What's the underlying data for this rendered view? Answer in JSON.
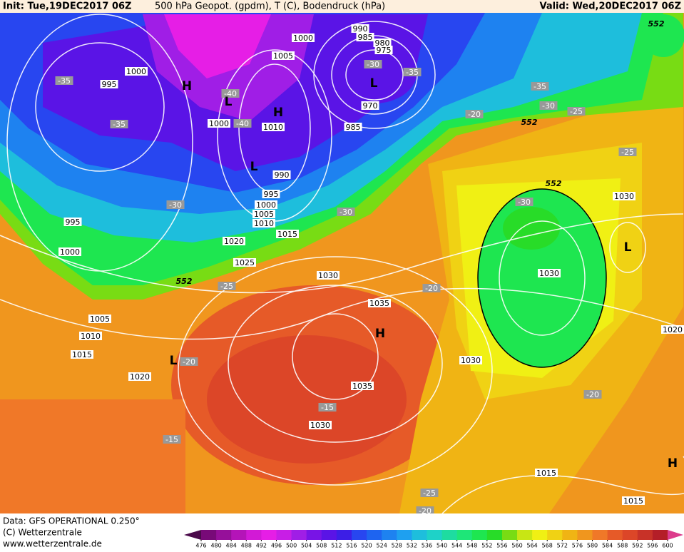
{
  "header": {
    "init": "Init: Tue,19DEC2017 06Z",
    "title": "500 hPa Geopot. (gpdm), T (C), Bodendruck (hPa)",
    "valid": "Valid: Wed,20DEC2017 06Z"
  },
  "map": {
    "pressure_labels": [
      "1000",
      "990",
      "985",
      "980",
      "975",
      "1005",
      "1000",
      "995",
      "970",
      "1000",
      "1010",
      "985",
      "990",
      "995",
      "1000",
      "1005",
      "1010",
      "1015",
      "995",
      "1020",
      "1000",
      "1025",
      "1030",
      "1035",
      "1005",
      "1010",
      "1015",
      "1020",
      "1035",
      "1030",
      "1030",
      "1030",
      "1030",
      "1020",
      "1015",
      "1015"
    ],
    "temperature_labels": [
      "-35",
      "-30",
      "-35",
      "-40",
      "-40",
      "-35",
      "-35",
      "-30",
      "-25",
      "-20",
      "-25",
      "-30",
      "-30",
      "-30",
      "-25",
      "-20",
      "-20",
      "-15",
      "-15",
      "-20",
      "-25",
      "-20"
    ],
    "height_labels": [
      "552",
      "552",
      "552",
      "552"
    ],
    "centers": [
      "H",
      "L",
      "H",
      "L",
      "H",
      "L",
      "L",
      "H",
      "L"
    ]
  },
  "footer": {
    "data": "Data: GFS OPERATIONAL 0.250°",
    "copyright": "(C) Wetterzentrale",
    "url": "www.wetterzentrale.de"
  },
  "colorbar": {
    "ticks": [
      476,
      480,
      484,
      488,
      492,
      496,
      500,
      504,
      508,
      512,
      516,
      520,
      524,
      528,
      532,
      536,
      540,
      544,
      548,
      552,
      556,
      560,
      564,
      568,
      572,
      576,
      580,
      584,
      588,
      592,
      596,
      600
    ],
    "colors": [
      "#4b0a4b",
      "#780a78",
      "#96109a",
      "#b414b8",
      "#d21ad6",
      "#e61ee6",
      "#c81ee6",
      "#a01ee6",
      "#7814e6",
      "#5a14e6",
      "#3c1ee6",
      "#2846f0",
      "#1e64f0",
      "#1e82f0",
      "#1ea0f0",
      "#1ebedc",
      "#1ed2c8",
      "#1edca0",
      "#1ee678",
      "#1ee650",
      "#28dc28",
      "#78dc14",
      "#c8e614",
      "#f0f014",
      "#f0d214",
      "#f0b414",
      "#f0961e",
      "#f07828",
      "#e65a28",
      "#dc4628",
      "#c83228",
      "#b41e28",
      "#dc3c8c"
    ]
  }
}
